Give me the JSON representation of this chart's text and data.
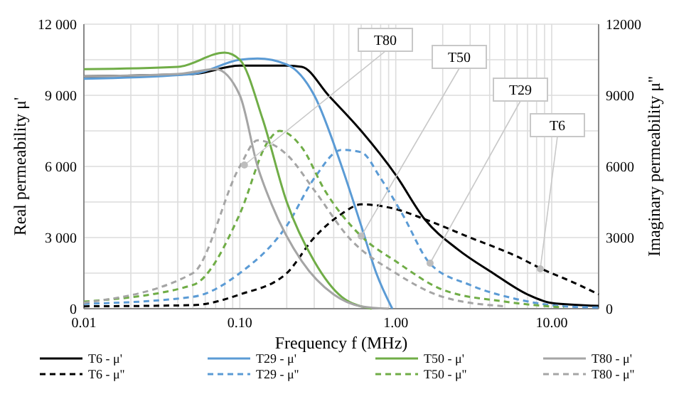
{
  "chart_data": {
    "type": "line",
    "xlabel": "Frequency f (MHz)",
    "ylabel": "Real permeability μ'",
    "y2label": "Imaginary permeability μ''",
    "log": "x",
    "xlim": [
      0.01,
      20
    ],
    "xticks": [
      {
        "value": 0.01,
        "label": "0.01"
      },
      {
        "value": 0.02,
        "label": null
      },
      {
        "value": 0.03,
        "label": null
      },
      {
        "value": 0.04,
        "label": null
      },
      {
        "value": 0.05,
        "label": null
      },
      {
        "value": 0.06,
        "label": null
      },
      {
        "value": 0.07,
        "label": null
      },
      {
        "value": 0.08,
        "label": null
      },
      {
        "value": 0.09,
        "label": null
      },
      {
        "value": 0.1,
        "label": "0.10"
      },
      {
        "value": 0.2,
        "label": null
      },
      {
        "value": 0.3,
        "label": null
      },
      {
        "value": 0.4,
        "label": null
      },
      {
        "value": 0.5,
        "label": null
      },
      {
        "value": 0.6,
        "label": null
      },
      {
        "value": 0.7,
        "label": null
      },
      {
        "value": 0.8,
        "label": null
      },
      {
        "value": 0.9,
        "label": null
      },
      {
        "value": 1,
        "label": "1.00"
      },
      {
        "value": 2,
        "label": null
      },
      {
        "value": 3,
        "label": null
      },
      {
        "value": 4,
        "label": null
      },
      {
        "value": 5,
        "label": null
      },
      {
        "value": 6,
        "label": null
      },
      {
        "value": 7,
        "label": null
      },
      {
        "value": 8,
        "label": null
      },
      {
        "value": 9,
        "label": null
      },
      {
        "value": 10,
        "label": "10.00"
      }
    ],
    "ylim": [
      0,
      12000
    ],
    "yticks": [
      {
        "value": 0,
        "label": "0"
      },
      {
        "value": 1500,
        "label": null
      },
      {
        "value": 3000,
        "label": "3 000"
      },
      {
        "value": 4500,
        "label": null
      },
      {
        "value": 6000,
        "label": "6 000"
      },
      {
        "value": 7500,
        "label": null
      },
      {
        "value": 9000,
        "label": "9 000"
      },
      {
        "value": 10500,
        "label": null
      },
      {
        "value": 12000,
        "label": "12 000"
      }
    ],
    "y2lim": [
      0,
      12000
    ],
    "y2ticks": [
      0,
      3000,
      6000,
      9000,
      12000
    ],
    "grid": true,
    "legend": "bottom",
    "series": [
      {
        "name": "T6 - μ'",
        "color": "#000000",
        "line_style": "solid",
        "x": [
          0.01,
          0.05,
          0.1,
          0.2,
          0.25,
          0.37,
          0.6,
          1,
          1.53,
          2.5,
          4.2,
          7,
          10,
          20
        ],
        "values": [
          9800,
          9900,
          10250,
          10250,
          10200,
          9000,
          7500,
          5640,
          3780,
          2500,
          1500,
          600,
          240,
          120
        ]
      },
      {
        "name": "T6 - μ''",
        "color": "#000000",
        "line_style": "dashed",
        "x": [
          0.01,
          0.05,
          0.1,
          0.2,
          0.3,
          0.45,
          0.6,
          1,
          1.5,
          3,
          6,
          8.5,
          15,
          20
        ],
        "values": [
          100,
          150,
          600,
          1500,
          3000,
          4000,
          4400,
          4200,
          3800,
          3000,
          2200,
          1700,
          1000,
          600
        ]
      },
      {
        "name": "T29 - μ'",
        "color": "#5b9bd5",
        "line_style": "solid",
        "x": [
          0.01,
          0.05,
          0.1,
          0.13,
          0.2,
          0.3,
          0.45,
          0.6,
          0.75,
          0.95
        ],
        "values": [
          9700,
          9900,
          10500,
          10550,
          10300,
          9000,
          6000,
          3500,
          1500,
          0
        ]
      },
      {
        "name": "T29 - μ''",
        "color": "#5b9bd5",
        "line_style": "dashed",
        "x": [
          0.01,
          0.05,
          0.1,
          0.2,
          0.3,
          0.45,
          0.6,
          0.8,
          1.1,
          1.66,
          3,
          6,
          12,
          20
        ],
        "values": [
          200,
          500,
          1500,
          3500,
          5500,
          6700,
          6600,
          5500,
          4000,
          1900,
          1000,
          400,
          100,
          50
        ]
      },
      {
        "name": "T50 - μ'",
        "color": "#70ad47",
        "line_style": "solid",
        "x": [
          0.01,
          0.04,
          0.08,
          0.1,
          0.14,
          0.2,
          0.3,
          0.45,
          0.7
        ],
        "values": [
          10100,
          10200,
          10800,
          10500,
          8000,
          4500,
          2000,
          500,
          0
        ]
      },
      {
        "name": "T50 - μ''",
        "color": "#70ad47",
        "line_style": "dashed",
        "x": [
          0.01,
          0.05,
          0.1,
          0.15,
          0.18,
          0.25,
          0.35,
          0.6,
          1,
          2,
          5,
          12
        ],
        "values": [
          300,
          1000,
          4000,
          7000,
          7500,
          6800,
          5000,
          3060,
          2000,
          800,
          300,
          50
        ]
      },
      {
        "name": "T80 - μ'",
        "color": "#a5a5a5",
        "line_style": "solid",
        "x": [
          0.01,
          0.04,
          0.07,
          0.1,
          0.13,
          0.16,
          0.25,
          0.4,
          0.6,
          0.9
        ],
        "values": [
          9800,
          9900,
          10100,
          9000,
          6000,
          4400,
          2000,
          600,
          100,
          0
        ]
      },
      {
        "name": "T80 - μ''",
        "color": "#a5a5a5",
        "line_style": "dashed",
        "x": [
          0.01,
          0.05,
          0.1,
          0.13,
          0.2,
          0.3,
          0.5,
          1,
          2,
          5
        ],
        "values": [
          250,
          1500,
          6000,
          7100,
          6500,
          5000,
          3000,
          1500,
          500,
          100
        ]
      }
    ],
    "annotations": [
      {
        "text": "T80",
        "x": 0.107,
        "y": 6060
      },
      {
        "text": "T50",
        "x": 0.6,
        "y": 3060
      },
      {
        "text": "T29",
        "x": 1.66,
        "y": 1920
      },
      {
        "text": "T6",
        "x": 8.45,
        "y": 1680
      }
    ]
  }
}
